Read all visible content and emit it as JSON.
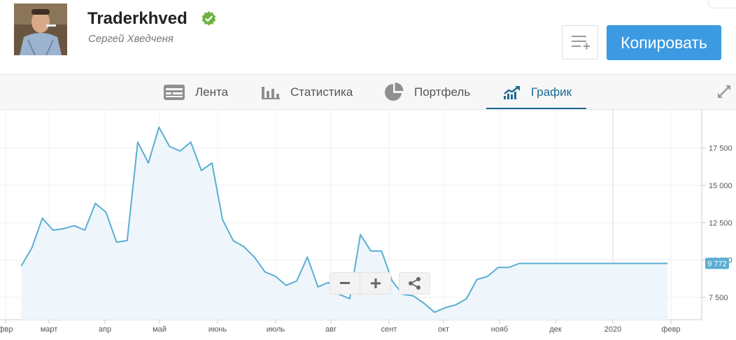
{
  "profile": {
    "username": "Traderkhved",
    "full_name": "Сергей Хведченя",
    "verified": true
  },
  "actions": {
    "list_icon": "add-to-list-icon",
    "copy_label": "Копировать"
  },
  "tabs": [
    {
      "label": "Лента",
      "icon": "feed-icon",
      "active": false
    },
    {
      "label": "Статистика",
      "icon": "bar-chart-icon",
      "active": false
    },
    {
      "label": "Портфель",
      "icon": "pie-chart-icon",
      "active": false
    },
    {
      "label": "График",
      "icon": "trend-chart-icon",
      "active": true
    }
  ],
  "colors": {
    "accent": "#3b9ae1",
    "active_tab": "#1a6a92",
    "line": "#5aaed2",
    "area": "#eef6fc",
    "verified": "#6cb33f"
  },
  "chart_data": {
    "type": "area",
    "title": "",
    "xlabel": "",
    "ylabel": "",
    "x_ticks": [
      "фвр",
      "март",
      "апр",
      "май",
      "июнь",
      "июль",
      "авг",
      "сент",
      "окт",
      "нояб",
      "дек",
      "2020",
      "февр"
    ],
    "y_ticks": [
      "7 500",
      "10 000",
      "12 500",
      "15 000",
      "17 500"
    ],
    "ylim": [
      6000,
      19500
    ],
    "grid": true,
    "current_value": 9772,
    "current_value_label": "9 772",
    "series": [
      {
        "x": [
          "2019-02-01",
          "2019-02-07",
          "2019-02-13",
          "2019-02-19",
          "2019-02-25",
          "2019-03-03",
          "2019-03-09",
          "2019-03-15",
          "2019-03-21",
          "2019-03-27",
          "2019-04-02",
          "2019-04-08",
          "2019-04-14",
          "2019-04-20",
          "2019-04-26",
          "2019-05-02",
          "2019-05-08",
          "2019-05-14",
          "2019-05-20",
          "2019-05-26",
          "2019-06-01",
          "2019-06-07",
          "2019-06-13",
          "2019-06-19",
          "2019-06-25",
          "2019-07-01",
          "2019-07-07",
          "2019-07-13",
          "2019-07-19",
          "2019-07-25",
          "2019-07-31",
          "2019-08-06",
          "2019-08-12",
          "2019-08-18",
          "2019-08-24",
          "2019-08-30",
          "2019-09-05",
          "2019-09-11",
          "2019-09-17",
          "2019-09-23",
          "2019-09-29",
          "2019-10-05",
          "2019-10-11",
          "2019-10-17",
          "2019-10-23",
          "2019-10-29",
          "2019-11-04",
          "2019-11-10",
          "2019-11-16",
          "2019-11-22",
          "2019-11-28",
          "2019-12-04",
          "2019-12-10",
          "2019-12-16",
          "2019-12-22",
          "2019-12-28",
          "2020-01-03",
          "2020-01-09",
          "2020-01-15",
          "2020-01-21",
          "2020-01-27",
          "2020-02-02"
        ],
        "values": [
          9600,
          10800,
          12800,
          12000,
          12100,
          12300,
          12000,
          13800,
          13200,
          11200,
          11300,
          17900,
          16500,
          18900,
          17600,
          17300,
          17900,
          16000,
          16500,
          12700,
          11300,
          10900,
          10200,
          9200,
          8900,
          8300,
          8600,
          10200,
          8200,
          8500,
          7700,
          7400,
          11700,
          10600,
          10600,
          8600,
          7700,
          7600,
          7100,
          6500,
          6800,
          7000,
          7400,
          8700,
          8900,
          9500,
          9500,
          9772,
          9772,
          9772,
          9772,
          9772,
          9772,
          9772,
          9772,
          9772,
          9772,
          9772,
          9772,
          9772,
          9772,
          9772
        ]
      }
    ]
  }
}
